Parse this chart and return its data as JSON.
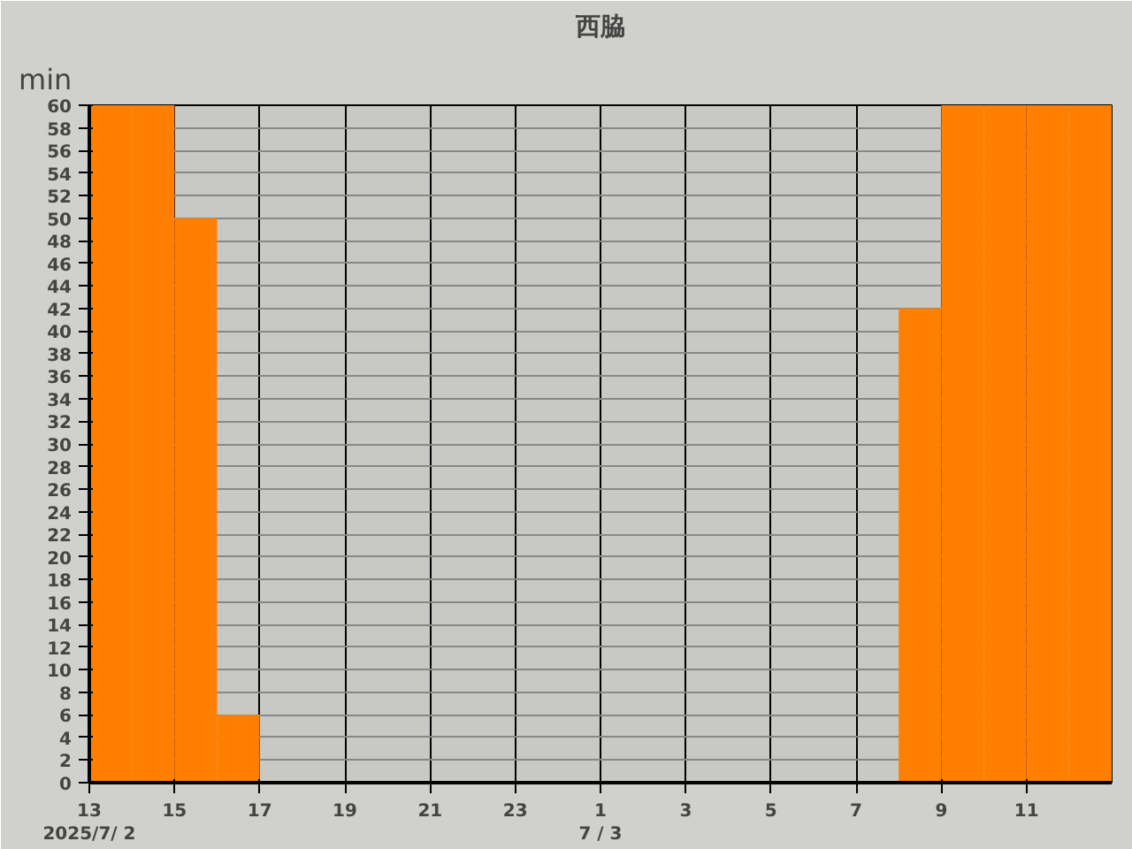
{
  "chart_data": {
    "type": "bar",
    "title": "西脇",
    "ylabel": "min",
    "categories": [
      "13",
      null,
      "15",
      null,
      "17",
      null,
      "19",
      null,
      "21",
      null,
      "23",
      null,
      "1",
      null,
      "3",
      null,
      "5",
      null,
      "7",
      null,
      "9",
      null,
      "11",
      null
    ],
    "values": [
      60,
      60,
      50,
      6,
      0,
      0,
      0,
      0,
      0,
      0,
      0,
      0,
      0,
      0,
      0,
      0,
      0,
      0,
      0,
      42,
      60,
      60,
      60,
      60
    ],
    "color": "#ff8000",
    "ylim": [
      0,
      60
    ],
    "yticks": [
      0,
      2,
      4,
      6,
      8,
      10,
      12,
      14,
      16,
      18,
      20,
      22,
      24,
      26,
      28,
      30,
      32,
      34,
      36,
      38,
      40,
      42,
      44,
      46,
      48,
      50,
      52,
      54,
      56,
      58,
      60
    ],
    "grid": true,
    "annotations": [
      "2025/7/ 2",
      "7 / 3"
    ]
  }
}
